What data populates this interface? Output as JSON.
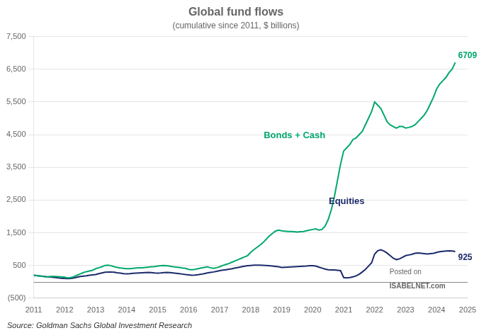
{
  "chart_data": {
    "type": "line",
    "title": "Global fund flows",
    "subtitle": "(cumulative since 2011, $ billions)",
    "source": "Source: Goldman Sachs Global Investment Research",
    "annotations": [
      "Posted on",
      "ISABELNET.com"
    ],
    "x": [
      2011.0,
      2011.1,
      2011.2,
      2011.3,
      2011.4,
      2011.5,
      2011.6,
      2011.7,
      2011.8,
      2011.9,
      2012.0,
      2012.1,
      2012.2,
      2012.3,
      2012.4,
      2012.5,
      2012.6,
      2012.7,
      2012.8,
      2012.9,
      2013.0,
      2013.1,
      2013.2,
      2013.3,
      2013.4,
      2013.5,
      2013.6,
      2013.7,
      2013.8,
      2013.9,
      2014.0,
      2014.1,
      2014.2,
      2014.3,
      2014.4,
      2014.5,
      2014.6,
      2014.7,
      2014.8,
      2014.9,
      2015.0,
      2015.1,
      2015.2,
      2015.3,
      2015.4,
      2015.5,
      2015.6,
      2015.7,
      2015.8,
      2015.9,
      2016.0,
      2016.1,
      2016.2,
      2016.3,
      2016.4,
      2016.5,
      2016.6,
      2016.7,
      2016.8,
      2016.9,
      2017.0,
      2017.1,
      2017.2,
      2017.3,
      2017.4,
      2017.5,
      2017.6,
      2017.7,
      2017.8,
      2017.9,
      2018.0,
      2018.1,
      2018.2,
      2018.3,
      2018.4,
      2018.5,
      2018.6,
      2018.7,
      2018.8,
      2018.9,
      2019.0,
      2019.1,
      2019.2,
      2019.3,
      2019.4,
      2019.5,
      2019.6,
      2019.7,
      2019.8,
      2019.9,
      2020.0,
      2020.1,
      2020.2,
      2020.3,
      2020.4,
      2020.5,
      2020.6,
      2020.7,
      2020.8,
      2020.9,
      2021.0,
      2021.1,
      2021.2,
      2021.3,
      2021.4,
      2021.5,
      2021.6,
      2021.7,
      2021.8,
      2021.9,
      2022.0,
      2022.1,
      2022.2,
      2022.3,
      2022.4,
      2022.5,
      2022.6,
      2022.7,
      2022.8,
      2022.9,
      2023.0,
      2023.1,
      2023.2,
      2023.3,
      2023.4,
      2023.5,
      2023.6,
      2023.7,
      2023.8,
      2023.9,
      2024.0,
      2024.1,
      2024.2,
      2024.3,
      2024.4,
      2024.5,
      2024.6
    ],
    "series": [
      {
        "name": "Bonds + Cash",
        "color": "#00A86B",
        "end_label": "6709",
        "values": [
          200,
          190,
          175,
          160,
          150,
          155,
          165,
          160,
          155,
          150,
          140,
          120,
          130,
          160,
          200,
          240,
          280,
          310,
          330,
          350,
          400,
          430,
          460,
          500,
          510,
          490,
          460,
          440,
          420,
          410,
          400,
          400,
          410,
          420,
          425,
          430,
          440,
          450,
          460,
          465,
          480,
          490,
          500,
          490,
          475,
          460,
          450,
          440,
          420,
          410,
          380,
          370,
          380,
          400,
          420,
          440,
          460,
          430,
          410,
          430,
          460,
          500,
          530,
          560,
          600,
          640,
          680,
          720,
          760,
          800,
          900,
          980,
          1050,
          1120,
          1200,
          1300,
          1400,
          1480,
          1550,
          1580,
          1560,
          1550,
          1540,
          1540,
          1530,
          1520,
          1530,
          1540,
          1560,
          1580,
          1600,
          1620,
          1580,
          1600,
          1700,
          1900,
          2200,
          2600,
          3100,
          3600,
          4000,
          4100,
          4200,
          4350,
          4400,
          4500,
          4600,
          4800,
          5000,
          5200,
          5500,
          5400,
          5300,
          5100,
          4900,
          4800,
          4750,
          4700,
          4750,
          4750,
          4700,
          4720,
          4750,
          4800,
          4900,
          5000,
          5100,
          5250,
          5450,
          5650,
          5900,
          6050,
          6150,
          6250,
          6400,
          6500,
          6709
        ]
      },
      {
        "name": "Equities",
        "color": "#1B2A6B",
        "end_label": "925",
        "values": [
          200,
          190,
          180,
          170,
          155,
          150,
          140,
          130,
          120,
          110,
          100,
          95,
          100,
          120,
          140,
          160,
          175,
          185,
          200,
          210,
          220,
          250,
          270,
          290,
          300,
          300,
          290,
          275,
          265,
          250,
          245,
          250,
          260,
          265,
          270,
          275,
          280,
          285,
          280,
          270,
          265,
          270,
          280,
          285,
          280,
          270,
          260,
          250,
          235,
          220,
          210,
          200,
          205,
          215,
          230,
          250,
          270,
          285,
          300,
          320,
          340,
          355,
          370,
          385,
          400,
          420,
          440,
          460,
          475,
          490,
          500,
          510,
          510,
          510,
          505,
          500,
          490,
          480,
          470,
          460,
          440,
          445,
          450,
          455,
          460,
          465,
          470,
          475,
          480,
          490,
          490,
          480,
          450,
          420,
          390,
          370,
          360,
          360,
          350,
          340,
          130,
          120,
          130,
          150,
          180,
          230,
          300,
          380,
          480,
          580,
          850,
          950,
          980,
          940,
          880,
          800,
          720,
          680,
          700,
          750,
          800,
          820,
          840,
          870,
          880,
          870,
          860,
          850,
          860,
          870,
          900,
          920,
          930,
          940,
          950,
          940,
          925
        ]
      }
    ],
    "xlim": [
      2011.0,
      2025.0
    ],
    "xticks": [
      2011,
      2012,
      2013,
      2014,
      2015,
      2016,
      2017,
      2018,
      2019,
      2020,
      2021,
      2022,
      2023,
      2024,
      2025
    ],
    "ylim": [
      -500,
      7500
    ],
    "yticks": [
      {
        "value": -500,
        "label": "(500)"
      },
      500,
      {
        "value": 1500,
        "label": "1,500"
      },
      {
        "value": 2500,
        "label": "2,500"
      },
      {
        "value": 3500,
        "label": "3,500"
      },
      {
        "value": 4500,
        "label": "4,500"
      },
      {
        "value": 5500,
        "label": "5,500"
      },
      {
        "value": 6500,
        "label": "6,500"
      },
      {
        "value": 7500,
        "label": "7,500"
      }
    ],
    "grid": true,
    "hline": 0
  }
}
